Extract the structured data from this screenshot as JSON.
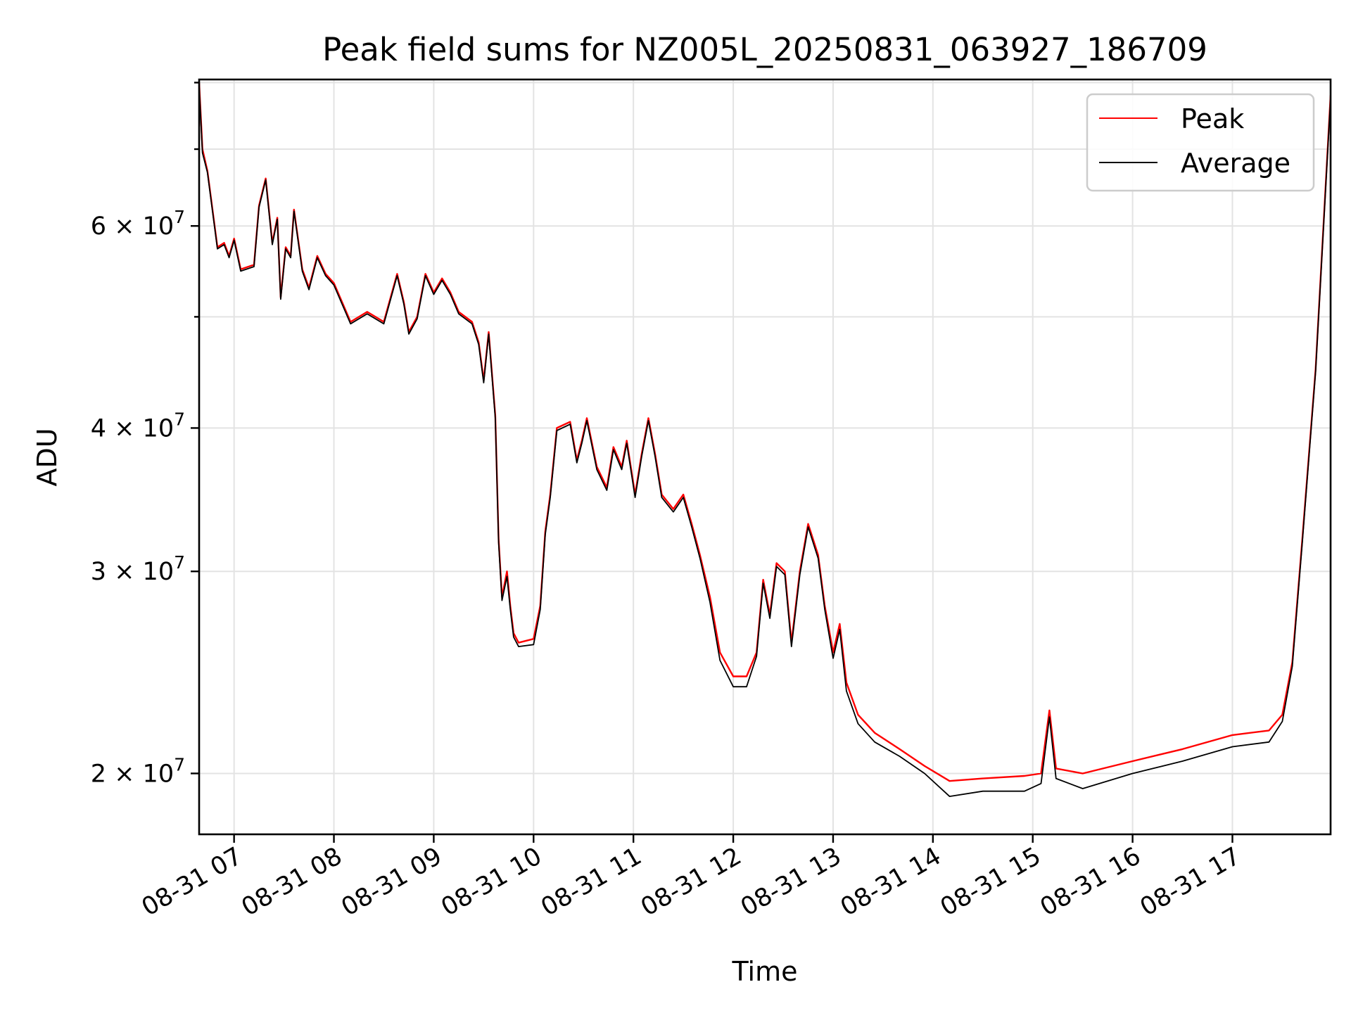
{
  "chart_data": {
    "type": "line",
    "title": "Peak field sums for NZ005L_20250831_063927_186709",
    "xlabel": "Time",
    "ylabel": "ADU",
    "yscale": "log",
    "grid": true,
    "legend_position": "top-right",
    "xlim": [
      "2025-08-31 06:39",
      "2025-08-31 17:59"
    ],
    "ylim": [
      17700000,
      80500000
    ],
    "x_ticks": [
      {
        "value": "2025-08-31 07:00",
        "label": "08-31 07"
      },
      {
        "value": "2025-08-31 08:00",
        "label": "08-31 08"
      },
      {
        "value": "2025-08-31 09:00",
        "label": "08-31 09"
      },
      {
        "value": "2025-08-31 10:00",
        "label": "08-31 10"
      },
      {
        "value": "2025-08-31 11:00",
        "label": "08-31 11"
      },
      {
        "value": "2025-08-31 12:00",
        "label": "08-31 12"
      },
      {
        "value": "2025-08-31 13:00",
        "label": "08-31 13"
      },
      {
        "value": "2025-08-31 14:00",
        "label": "08-31 14"
      },
      {
        "value": "2025-08-31 15:00",
        "label": "08-31 15"
      },
      {
        "value": "2025-08-31 16:00",
        "label": "08-31 16"
      },
      {
        "value": "2025-08-31 17:00",
        "label": "08-31 17"
      }
    ],
    "y_ticks": [
      {
        "value": 20000000,
        "mant": "2",
        "exp": "7"
      },
      {
        "value": 30000000,
        "mant": "3",
        "exp": "7"
      },
      {
        "value": 40000000,
        "mant": "4",
        "exp": "7"
      },
      {
        "value": 60000000,
        "mant": "6",
        "exp": "7"
      }
    ],
    "y_minor_ticks": [
      50000000,
      70000000,
      80000000
    ],
    "series": [
      {
        "name": "Peak",
        "color": "#ff0000",
        "points": [
          [
            "2025-08-31 06:39",
            80000000
          ],
          [
            "2025-08-31 06:41",
            70000000
          ],
          [
            "2025-08-31 06:44",
            67000000
          ],
          [
            "2025-08-31 06:50",
            57500000
          ],
          [
            "2025-08-31 06:54",
            58000000
          ],
          [
            "2025-08-31 06:57",
            56500000
          ],
          [
            "2025-08-31 07:00",
            58500000
          ],
          [
            "2025-08-31 07:04",
            55000000
          ],
          [
            "2025-08-31 07:12",
            55500000
          ],
          [
            "2025-08-31 07:15",
            62500000
          ],
          [
            "2025-08-31 07:19",
            66000000
          ],
          [
            "2025-08-31 07:23",
            58000000
          ],
          [
            "2025-08-31 07:26",
            61000000
          ],
          [
            "2025-08-31 07:28",
            52000000
          ],
          [
            "2025-08-31 07:31",
            57500000
          ],
          [
            "2025-08-31 07:34",
            56500000
          ],
          [
            "2025-08-31 07:36",
            62000000
          ],
          [
            "2025-08-31 07:41",
            55000000
          ],
          [
            "2025-08-31 07:45",
            53000000
          ],
          [
            "2025-08-31 07:50",
            56500000
          ],
          [
            "2025-08-31 07:55",
            54500000
          ],
          [
            "2025-08-31 08:00",
            53500000
          ],
          [
            "2025-08-31 08:10",
            49500000
          ],
          [
            "2025-08-31 08:20",
            50500000
          ],
          [
            "2025-08-31 08:30",
            49500000
          ],
          [
            "2025-08-31 08:38",
            54500000
          ],
          [
            "2025-08-31 08:42",
            51500000
          ],
          [
            "2025-08-31 08:45",
            48500000
          ],
          [
            "2025-08-31 08:50",
            50000000
          ],
          [
            "2025-08-31 08:55",
            54500000
          ],
          [
            "2025-08-31 09:00",
            52500000
          ],
          [
            "2025-08-31 09:05",
            54000000
          ],
          [
            "2025-08-31 09:10",
            52500000
          ],
          [
            "2025-08-31 09:15",
            50500000
          ],
          [
            "2025-08-31 09:23",
            49500000
          ],
          [
            "2025-08-31 09:27",
            47500000
          ],
          [
            "2025-08-31 09:30",
            44000000
          ],
          [
            "2025-08-31 09:33",
            48500000
          ],
          [
            "2025-08-31 09:37",
            41000000
          ],
          [
            "2025-08-31 09:39",
            32000000
          ],
          [
            "2025-08-31 09:41",
            28500000
          ],
          [
            "2025-08-31 09:44",
            30000000
          ],
          [
            "2025-08-31 09:46",
            28000000
          ],
          [
            "2025-08-31 09:48",
            26500000
          ],
          [
            "2025-08-31 09:51",
            26000000
          ],
          [
            "2025-08-31 10:00",
            26200000
          ],
          [
            "2025-08-31 10:04",
            28000000
          ],
          [
            "2025-08-31 10:07",
            32500000
          ],
          [
            "2025-08-31 10:10",
            35000000
          ],
          [
            "2025-08-31 10:14",
            40000000
          ],
          [
            "2025-08-31 10:22",
            40500000
          ],
          [
            "2025-08-31 10:26",
            37500000
          ],
          [
            "2025-08-31 10:29",
            39000000
          ],
          [
            "2025-08-31 10:32",
            40800000
          ],
          [
            "2025-08-31 10:38",
            37000000
          ],
          [
            "2025-08-31 10:44",
            35500000
          ],
          [
            "2025-08-31 10:48",
            38500000
          ],
          [
            "2025-08-31 10:53",
            37000000
          ],
          [
            "2025-08-31 10:56",
            39000000
          ],
          [
            "2025-08-31 11:01",
            35000000
          ],
          [
            "2025-08-31 11:05",
            38000000
          ],
          [
            "2025-08-31 11:09",
            40800000
          ],
          [
            "2025-08-31 11:13",
            38000000
          ],
          [
            "2025-08-31 11:17",
            35000000
          ],
          [
            "2025-08-31 11:24",
            34000000
          ],
          [
            "2025-08-31 11:30",
            35000000
          ],
          [
            "2025-08-31 11:35",
            33000000
          ],
          [
            "2025-08-31 11:40",
            31000000
          ],
          [
            "2025-08-31 11:46",
            28500000
          ],
          [
            "2025-08-31 11:52",
            25500000
          ],
          [
            "2025-08-31 12:00",
            24300000
          ],
          [
            "2025-08-31 12:08",
            24300000
          ],
          [
            "2025-08-31 12:14",
            25500000
          ],
          [
            "2025-08-31 12:18",
            29500000
          ],
          [
            "2025-08-31 12:22",
            27500000
          ],
          [
            "2025-08-31 12:26",
            30500000
          ],
          [
            "2025-08-31 12:31",
            30000000
          ],
          [
            "2025-08-31 12:35",
            26000000
          ],
          [
            "2025-08-31 12:40",
            30000000
          ],
          [
            "2025-08-31 12:45",
            33000000
          ],
          [
            "2025-08-31 12:51",
            31000000
          ],
          [
            "2025-08-31 12:55",
            28000000
          ],
          [
            "2025-08-31 13:00",
            25500000
          ],
          [
            "2025-08-31 13:04",
            27000000
          ],
          [
            "2025-08-31 13:08",
            24000000
          ],
          [
            "2025-08-31 13:15",
            22500000
          ],
          [
            "2025-08-31 13:25",
            21700000
          ],
          [
            "2025-08-31 13:40",
            21000000
          ],
          [
            "2025-08-31 13:55",
            20300000
          ],
          [
            "2025-08-31 14:10",
            19700000
          ],
          [
            "2025-08-31 14:30",
            19800000
          ],
          [
            "2025-08-31 14:55",
            19900000
          ],
          [
            "2025-08-31 15:05",
            20000000
          ],
          [
            "2025-08-31 15:10",
            22700000
          ],
          [
            "2025-08-31 15:14",
            20200000
          ],
          [
            "2025-08-31 15:30",
            20000000
          ],
          [
            "2025-08-31 16:00",
            20500000
          ],
          [
            "2025-08-31 16:30",
            21000000
          ],
          [
            "2025-08-31 17:00",
            21600000
          ],
          [
            "2025-08-31 17:22",
            21800000
          ],
          [
            "2025-08-31 17:30",
            22500000
          ],
          [
            "2025-08-31 17:36",
            25000000
          ],
          [
            "2025-08-31 17:42",
            32000000
          ],
          [
            "2025-08-31 17:50",
            45000000
          ],
          [
            "2025-08-31 17:59",
            78000000
          ]
        ]
      },
      {
        "name": "Average",
        "color": "#000000",
        "points": [
          [
            "2025-08-31 06:39",
            79500000
          ],
          [
            "2025-08-31 06:41",
            69500000
          ],
          [
            "2025-08-31 06:44",
            66800000
          ],
          [
            "2025-08-31 06:50",
            57300000
          ],
          [
            "2025-08-31 06:54",
            57800000
          ],
          [
            "2025-08-31 06:57",
            56300000
          ],
          [
            "2025-08-31 07:00",
            58300000
          ],
          [
            "2025-08-31 07:04",
            54800000
          ],
          [
            "2025-08-31 07:12",
            55300000
          ],
          [
            "2025-08-31 07:15",
            62300000
          ],
          [
            "2025-08-31 07:19",
            65800000
          ],
          [
            "2025-08-31 07:23",
            57800000
          ],
          [
            "2025-08-31 07:26",
            60800000
          ],
          [
            "2025-08-31 07:28",
            51800000
          ],
          [
            "2025-08-31 07:31",
            57300000
          ],
          [
            "2025-08-31 07:34",
            56300000
          ],
          [
            "2025-08-31 07:36",
            61800000
          ],
          [
            "2025-08-31 07:41",
            54800000
          ],
          [
            "2025-08-31 07:45",
            52800000
          ],
          [
            "2025-08-31 07:50",
            56300000
          ],
          [
            "2025-08-31 07:55",
            54300000
          ],
          [
            "2025-08-31 08:00",
            53300000
          ],
          [
            "2025-08-31 08:10",
            49300000
          ],
          [
            "2025-08-31 08:20",
            50300000
          ],
          [
            "2025-08-31 08:30",
            49300000
          ],
          [
            "2025-08-31 08:38",
            54300000
          ],
          [
            "2025-08-31 08:42",
            51300000
          ],
          [
            "2025-08-31 08:45",
            48300000
          ],
          [
            "2025-08-31 08:50",
            49800000
          ],
          [
            "2025-08-31 08:55",
            54300000
          ],
          [
            "2025-08-31 09:00",
            52300000
          ],
          [
            "2025-08-31 09:05",
            53800000
          ],
          [
            "2025-08-31 09:10",
            52300000
          ],
          [
            "2025-08-31 09:15",
            50300000
          ],
          [
            "2025-08-31 09:23",
            49300000
          ],
          [
            "2025-08-31 09:27",
            47300000
          ],
          [
            "2025-08-31 09:30",
            43800000
          ],
          [
            "2025-08-31 09:33",
            48300000
          ],
          [
            "2025-08-31 09:37",
            40800000
          ],
          [
            "2025-08-31 09:39",
            31800000
          ],
          [
            "2025-08-31 09:41",
            28300000
          ],
          [
            "2025-08-31 09:44",
            29700000
          ],
          [
            "2025-08-31 09:46",
            27800000
          ],
          [
            "2025-08-31 09:48",
            26300000
          ],
          [
            "2025-08-31 09:51",
            25800000
          ],
          [
            "2025-08-31 10:00",
            25900000
          ],
          [
            "2025-08-31 10:04",
            27800000
          ],
          [
            "2025-08-31 10:07",
            32300000
          ],
          [
            "2025-08-31 10:10",
            34800000
          ],
          [
            "2025-08-31 10:14",
            39800000
          ],
          [
            "2025-08-31 10:22",
            40300000
          ],
          [
            "2025-08-31 10:26",
            37300000
          ],
          [
            "2025-08-31 10:29",
            38800000
          ],
          [
            "2025-08-31 10:32",
            40600000
          ],
          [
            "2025-08-31 10:38",
            36800000
          ],
          [
            "2025-08-31 10:44",
            35300000
          ],
          [
            "2025-08-31 10:48",
            38300000
          ],
          [
            "2025-08-31 10:53",
            36800000
          ],
          [
            "2025-08-31 10:56",
            38800000
          ],
          [
            "2025-08-31 11:01",
            34800000
          ],
          [
            "2025-08-31 11:05",
            37800000
          ],
          [
            "2025-08-31 11:09",
            40600000
          ],
          [
            "2025-08-31 11:13",
            37800000
          ],
          [
            "2025-08-31 11:17",
            34800000
          ],
          [
            "2025-08-31 11:24",
            33800000
          ],
          [
            "2025-08-31 11:30",
            34800000
          ],
          [
            "2025-08-31 11:35",
            32800000
          ],
          [
            "2025-08-31 11:40",
            30800000
          ],
          [
            "2025-08-31 11:46",
            28200000
          ],
          [
            "2025-08-31 11:52",
            25100000
          ],
          [
            "2025-08-31 12:00",
            23800000
          ],
          [
            "2025-08-31 12:08",
            23800000
          ],
          [
            "2025-08-31 12:14",
            25300000
          ],
          [
            "2025-08-31 12:18",
            29300000
          ],
          [
            "2025-08-31 12:22",
            27300000
          ],
          [
            "2025-08-31 12:26",
            30300000
          ],
          [
            "2025-08-31 12:31",
            29800000
          ],
          [
            "2025-08-31 12:35",
            25800000
          ],
          [
            "2025-08-31 12:40",
            29800000
          ],
          [
            "2025-08-31 12:45",
            32800000
          ],
          [
            "2025-08-31 12:51",
            30800000
          ],
          [
            "2025-08-31 12:55",
            27800000
          ],
          [
            "2025-08-31 13:00",
            25200000
          ],
          [
            "2025-08-31 13:04",
            26700000
          ],
          [
            "2025-08-31 13:08",
            23600000
          ],
          [
            "2025-08-31 13:15",
            22100000
          ],
          [
            "2025-08-31 13:25",
            21300000
          ],
          [
            "2025-08-31 13:40",
            20700000
          ],
          [
            "2025-08-31 13:55",
            20000000
          ],
          [
            "2025-08-31 14:10",
            19100000
          ],
          [
            "2025-08-31 14:30",
            19300000
          ],
          [
            "2025-08-31 14:55",
            19300000
          ],
          [
            "2025-08-31 15:05",
            19600000
          ],
          [
            "2025-08-31 15:10",
            22400000
          ],
          [
            "2025-08-31 15:14",
            19800000
          ],
          [
            "2025-08-31 15:30",
            19400000
          ],
          [
            "2025-08-31 16:00",
            20000000
          ],
          [
            "2025-08-31 16:30",
            20500000
          ],
          [
            "2025-08-31 17:00",
            21100000
          ],
          [
            "2025-08-31 17:22",
            21300000
          ],
          [
            "2025-08-31 17:30",
            22200000
          ],
          [
            "2025-08-31 17:36",
            24800000
          ],
          [
            "2025-08-31 17:42",
            31800000
          ],
          [
            "2025-08-31 17:50",
            44800000
          ],
          [
            "2025-08-31 17:59",
            77500000
          ]
        ]
      }
    ]
  }
}
